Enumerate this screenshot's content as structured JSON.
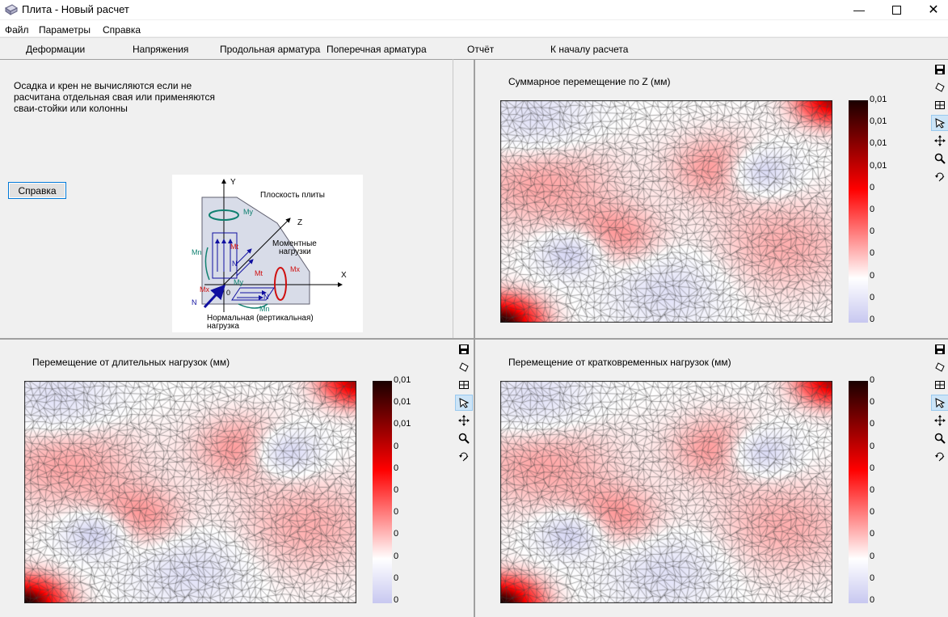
{
  "window": {
    "title": "Плита - Новый расчет",
    "minimize_icon": "minimize-icon",
    "maximize_icon": "maximize-icon",
    "close_icon": "close-icon"
  },
  "menu": {
    "items": [
      "Файл",
      "Параметры",
      "Справка"
    ]
  },
  "tabs": [
    "Деформации",
    "Напряжения",
    "Продольная арматура",
    "Поперечная арматура",
    "Отчёт",
    "К началу расчета"
  ],
  "left_panel": {
    "info_text": "Осадка и крен не вычисляются если не расчитана отдельная свая или применяются сваи-стойки или колонны",
    "help_button": "Справка",
    "diagram": {
      "axis_y": "Y",
      "axis_z": "Z",
      "axis_x": "X",
      "origin": "0",
      "label_plane": "Плоскость плиты",
      "label_moment_1": "Моментные",
      "label_moment_2": "нагрузки",
      "label_normal_1": "Нормальная (вертикальная)",
      "label_normal_2": "нагрузка",
      "my": "My",
      "my2": "My",
      "mt": "Mt",
      "mt2": "Mt",
      "mx": "Mx",
      "mx2": "Mx",
      "mn": "Mn",
      "mn2": "Mn",
      "n": "N",
      "n2": "N",
      "n3": "N"
    }
  },
  "plots": {
    "total": {
      "title": "Суммарное перемещение по Z (мм)",
      "scale": [
        "0,01",
        "0,01",
        "0,01",
        "0,01",
        "0",
        "0",
        "0",
        "0",
        "0",
        "0",
        "0"
      ]
    },
    "long_term": {
      "title": "Перемещение от длительных нагрузок (мм)",
      "scale": [
        "0,01",
        "0,01",
        "0,01",
        "0",
        "0",
        "0",
        "0",
        "0",
        "0",
        "0",
        "0"
      ]
    },
    "short_term": {
      "title": "Перемещение от кратковременных нагрузок (мм)",
      "scale": [
        "0",
        "0",
        "0",
        "0",
        "0",
        "0",
        "0",
        "0",
        "0",
        "0",
        "0"
      ]
    }
  },
  "toolbar_icons": [
    "save-icon",
    "eraser-icon",
    "grid-icon",
    "pointer-icon",
    "move-icon",
    "zoom-icon",
    "rotate-icon"
  ],
  "colors": {
    "colorbar_top": "#1a0000",
    "colorbar_mid": "#ff0000",
    "colorbar_white": "#ffffff",
    "colorbar_bottom": "#c8c8f0",
    "mesh_line": "#404040"
  }
}
